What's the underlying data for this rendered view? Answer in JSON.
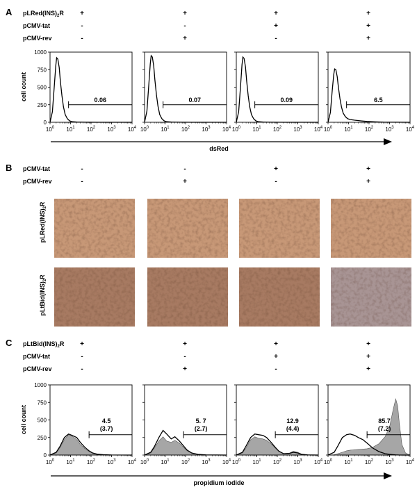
{
  "panels": {
    "A": {
      "letter": "A",
      "rows": [
        {
          "label": "pLRed(INS)",
          "sub": "2",
          "suffix": "R",
          "signs": [
            "+",
            "+",
            "+",
            "+"
          ]
        },
        {
          "label": "pCMV-tat",
          "signs": [
            "-",
            "-",
            "+",
            "+"
          ]
        },
        {
          "label": "pCMV-rev",
          "signs": [
            "-",
            "+",
            "-",
            "+"
          ]
        }
      ],
      "ylabel": "cell count",
      "xlabel": "dsRed",
      "yticks": [
        "1000",
        "750",
        "500",
        "250",
        "0"
      ],
      "xtick_exponents": [
        "0",
        "1",
        "2",
        "3",
        "4"
      ],
      "gates": [
        "0.06",
        "0.07",
        "0.09",
        "6.5"
      ]
    },
    "B": {
      "letter": "B",
      "rows": [
        {
          "label": "pCMV-tat",
          "signs": [
            "-",
            "-",
            "+",
            "+"
          ]
        },
        {
          "label": "pCMV-rev",
          "signs": [
            "-",
            "+",
            "-",
            "+"
          ]
        }
      ],
      "row_labels": [
        {
          "label": "pLRed(INS)",
          "sub": "2",
          "suffix": "R"
        },
        {
          "label": "pLtBid(INS)",
          "sub": "2",
          "suffix": "R"
        }
      ],
      "colors": {
        "tile": "#c79877",
        "tile_dark": "#a77a62",
        "tile_lilac": "#a89494"
      }
    },
    "C": {
      "letter": "C",
      "rows": [
        {
          "label": "pLtBid(INS)",
          "sub": "2",
          "suffix": "R",
          "signs": [
            "+",
            "+",
            "+",
            "+"
          ]
        },
        {
          "label": "pCMV-tat",
          "signs": [
            "-",
            "-",
            "+",
            "+"
          ]
        },
        {
          "label": "pCMV-rev",
          "signs": [
            "-",
            "+",
            "-",
            "+"
          ]
        }
      ],
      "ylabel": "cell count",
      "xlabel": "propidium iodide",
      "yticks": [
        "1000",
        "750",
        "500",
        "250",
        "0"
      ],
      "xtick_exponents": [
        "0",
        "1",
        "2",
        "3",
        "4"
      ],
      "gates": [
        {
          "value": "4.5",
          "paren": "(3.7)"
        },
        {
          "value": "5. 7",
          "paren": "(2.7)"
        },
        {
          "value": "12.9",
          "paren": "(4.4)"
        },
        {
          "value": "85.7",
          "paren": "(7.2)"
        }
      ]
    }
  },
  "chart_data": [
    {
      "type": "line",
      "panel": "A",
      "ylabel": "cell count",
      "xlabel": "dsRed",
      "xscale": "log",
      "xlim": [
        1,
        10000
      ],
      "ylim": [
        0,
        1000
      ],
      "series": [
        {
          "x": [
            1,
            1.3,
            1.6,
            1.9,
            2.1,
            2.4,
            2.8,
            3.2,
            3.8,
            4.5,
            5.5,
            7,
            9,
            12,
            20,
            50,
            200,
            10000
          ],
          "values": [
            0,
            150,
            500,
            800,
            920,
            900,
            780,
            580,
            380,
            220,
            110,
            50,
            20,
            8,
            3,
            1,
            0,
            0
          ]
        },
        {
          "x": [
            1,
            1.3,
            1.6,
            1.9,
            2.1,
            2.4,
            2.8,
            3.2,
            3.8,
            4.5,
            5.5,
            7,
            9,
            12,
            20,
            50,
            200,
            10000
          ],
          "values": [
            0,
            160,
            520,
            830,
            950,
            930,
            800,
            600,
            390,
            230,
            110,
            50,
            20,
            8,
            3,
            1,
            0,
            0
          ]
        },
        {
          "x": [
            1,
            1.3,
            1.6,
            1.9,
            2.1,
            2.4,
            2.8,
            3.2,
            3.8,
            4.5,
            5.5,
            7,
            9,
            12,
            20,
            50,
            200,
            10000
          ],
          "values": [
            0,
            150,
            500,
            820,
            930,
            910,
            790,
            590,
            380,
            220,
            110,
            50,
            20,
            8,
            3,
            1,
            0,
            0
          ]
        },
        {
          "x": [
            1,
            1.3,
            1.6,
            1.9,
            2.1,
            2.4,
            2.8,
            3.2,
            3.8,
            4.5,
            5.5,
            7,
            9,
            12,
            20,
            40,
            80,
            200,
            500,
            10000
          ],
          "values": [
            0,
            140,
            450,
            680,
            760,
            750,
            650,
            500,
            340,
            220,
            130,
            80,
            50,
            40,
            30,
            20,
            12,
            6,
            2,
            0
          ]
        }
      ],
      "gates": [
        0.06,
        0.07,
        0.09,
        6.5
      ],
      "gate_range": [
        8,
        10000
      ]
    },
    {
      "type": "area",
      "panel": "C",
      "ylabel": "cell count",
      "xlabel": "propidium iodide",
      "xscale": "log",
      "xlim": [
        1,
        10000
      ],
      "ylim": [
        0,
        1000
      ],
      "series": [
        {
          "x": [
            1,
            2,
            3,
            5,
            8,
            12,
            20,
            30,
            50,
            80,
            120,
            200,
            400,
            1000,
            10000
          ],
          "filled": [
            0,
            30,
            100,
            220,
            290,
            270,
            220,
            150,
            90,
            50,
            25,
            10,
            4,
            1,
            0
          ],
          "outline": [
            0,
            40,
            120,
            250,
            300,
            280,
            250,
            180,
            110,
            60,
            30,
            12,
            5,
            1,
            0
          ]
        },
        {
          "x": [
            1,
            2,
            3,
            5,
            8,
            12,
            20,
            30,
            50,
            80,
            120,
            200,
            400,
            1000,
            10000
          ],
          "filled": [
            0,
            30,
            100,
            200,
            260,
            200,
            180,
            210,
            170,
            110,
            60,
            25,
            8,
            2,
            0
          ],
          "outline": [
            0,
            40,
            120,
            250,
            350,
            300,
            230,
            260,
            200,
            130,
            70,
            30,
            10,
            2,
            0
          ]
        },
        {
          "x": [
            1,
            2,
            3,
            5,
            8,
            12,
            20,
            30,
            50,
            80,
            120,
            200,
            400,
            600,
            1000,
            1500,
            3000,
            10000
          ],
          "filled": [
            0,
            30,
            100,
            220,
            260,
            240,
            230,
            210,
            160,
            100,
            50,
            20,
            30,
            55,
            40,
            15,
            3,
            0
          ],
          "outline": [
            0,
            40,
            130,
            250,
            300,
            290,
            280,
            250,
            180,
            110,
            55,
            20,
            25,
            40,
            30,
            10,
            2,
            0
          ]
        },
        {
          "x": [
            1,
            2,
            3,
            5,
            8,
            12,
            20,
            30,
            50,
            80,
            150,
            300,
            600,
            1000,
            1500,
            2000,
            2500,
            3000,
            4000,
            6000,
            10000
          ],
          "filled": [
            0,
            5,
            20,
            40,
            60,
            70,
            75,
            80,
            85,
            90,
            110,
            160,
            260,
            400,
            650,
            800,
            700,
            450,
            150,
            30,
            0
          ],
          "outline": [
            0,
            40,
            130,
            250,
            290,
            300,
            280,
            250,
            220,
            170,
            100,
            50,
            20,
            10,
            5,
            2,
            1,
            0,
            0,
            0,
            0
          ]
        }
      ],
      "gate_range": [
        80,
        10000
      ]
    }
  ]
}
